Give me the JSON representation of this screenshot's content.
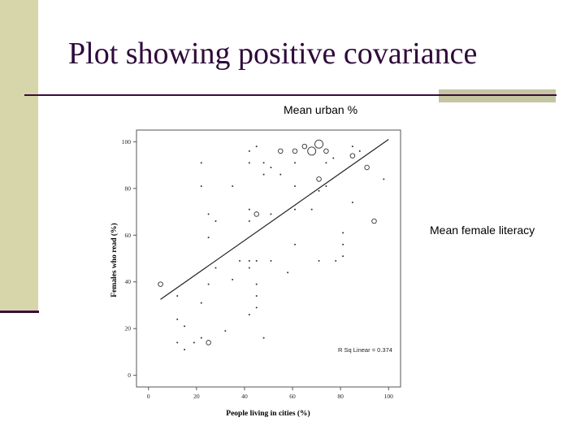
{
  "slide": {
    "title": "Plot showing positive covariance",
    "caption_top": "Mean urban %",
    "caption_right": "Mean female literacy"
  },
  "colors": {
    "accent": "#2f0a3a",
    "sidebar": "#d6d6aa",
    "rule_block": "#c5c5a3"
  },
  "chart_data": {
    "type": "scatter",
    "title": "",
    "xlabel": "People living in cities (%)",
    "ylabel": "Females who read (%)",
    "xlim": [
      -5,
      105
    ],
    "ylim": [
      -5,
      105
    ],
    "xticks": [
      0,
      20,
      40,
      60,
      80,
      100
    ],
    "yticks": [
      0,
      20,
      40,
      60,
      80,
      100
    ],
    "grid": false,
    "annotation": "R Sq Linear = 0.374",
    "fit_line": {
      "x": [
        5,
        100
      ],
      "y": [
        32.5,
        101
      ]
    },
    "points": [
      {
        "x": 5,
        "y": 39,
        "size": "medium"
      },
      {
        "x": 12,
        "y": 34,
        "size": "small"
      },
      {
        "x": 12,
        "y": 24,
        "size": "small"
      },
      {
        "x": 12,
        "y": 14,
        "size": "small"
      },
      {
        "x": 15,
        "y": 21,
        "size": "small"
      },
      {
        "x": 15,
        "y": 11,
        "size": "small"
      },
      {
        "x": 19,
        "y": 14,
        "size": "small"
      },
      {
        "x": 22,
        "y": 91,
        "size": "small"
      },
      {
        "x": 22,
        "y": 81,
        "size": "small"
      },
      {
        "x": 22,
        "y": 31,
        "size": "small"
      },
      {
        "x": 22,
        "y": 16,
        "size": "small"
      },
      {
        "x": 25,
        "y": 69,
        "size": "small"
      },
      {
        "x": 25,
        "y": 59,
        "size": "small"
      },
      {
        "x": 25,
        "y": 39,
        "size": "small"
      },
      {
        "x": 25,
        "y": 14,
        "size": "medium"
      },
      {
        "x": 28,
        "y": 66,
        "size": "small"
      },
      {
        "x": 28,
        "y": 46,
        "size": "small"
      },
      {
        "x": 32,
        "y": 19,
        "size": "small"
      },
      {
        "x": 35,
        "y": 81,
        "size": "small"
      },
      {
        "x": 35,
        "y": 41,
        "size": "small"
      },
      {
        "x": 38,
        "y": 49,
        "size": "small"
      },
      {
        "x": 42,
        "y": 96,
        "size": "small"
      },
      {
        "x": 42,
        "y": 91,
        "size": "small"
      },
      {
        "x": 42,
        "y": 71,
        "size": "small"
      },
      {
        "x": 42,
        "y": 66,
        "size": "small"
      },
      {
        "x": 42,
        "y": 49,
        "size": "small"
      },
      {
        "x": 42,
        "y": 46,
        "size": "small"
      },
      {
        "x": 42,
        "y": 26,
        "size": "small"
      },
      {
        "x": 45,
        "y": 98,
        "size": "small"
      },
      {
        "x": 45,
        "y": 69,
        "size": "medium"
      },
      {
        "x": 45,
        "y": 49,
        "size": "small"
      },
      {
        "x": 45,
        "y": 39,
        "size": "small"
      },
      {
        "x": 45,
        "y": 34,
        "size": "small"
      },
      {
        "x": 45,
        "y": 29,
        "size": "small"
      },
      {
        "x": 48,
        "y": 91,
        "size": "small"
      },
      {
        "x": 48,
        "y": 86,
        "size": "small"
      },
      {
        "x": 48,
        "y": 16,
        "size": "small"
      },
      {
        "x": 51,
        "y": 89,
        "size": "small"
      },
      {
        "x": 51,
        "y": 69,
        "size": "small"
      },
      {
        "x": 51,
        "y": 49,
        "size": "small"
      },
      {
        "x": 55,
        "y": 96,
        "size": "medium"
      },
      {
        "x": 55,
        "y": 86,
        "size": "small"
      },
      {
        "x": 58,
        "y": 44,
        "size": "small"
      },
      {
        "x": 61,
        "y": 96,
        "size": "medium"
      },
      {
        "x": 61,
        "y": 91,
        "size": "small"
      },
      {
        "x": 61,
        "y": 81,
        "size": "small"
      },
      {
        "x": 61,
        "y": 71,
        "size": "small"
      },
      {
        "x": 61,
        "y": 56,
        "size": "small"
      },
      {
        "x": 65,
        "y": 98,
        "size": "medium"
      },
      {
        "x": 68,
        "y": 96,
        "size": "large"
      },
      {
        "x": 68,
        "y": 71,
        "size": "small"
      },
      {
        "x": 71,
        "y": 99,
        "size": "large"
      },
      {
        "x": 71,
        "y": 84,
        "size": "medium"
      },
      {
        "x": 71,
        "y": 79,
        "size": "small"
      },
      {
        "x": 71,
        "y": 49,
        "size": "small"
      },
      {
        "x": 74,
        "y": 96,
        "size": "medium"
      },
      {
        "x": 74,
        "y": 91,
        "size": "small"
      },
      {
        "x": 74,
        "y": 81,
        "size": "small"
      },
      {
        "x": 77,
        "y": 93,
        "size": "small"
      },
      {
        "x": 78,
        "y": 49,
        "size": "small"
      },
      {
        "x": 81,
        "y": 61,
        "size": "small"
      },
      {
        "x": 81,
        "y": 56,
        "size": "small"
      },
      {
        "x": 81,
        "y": 51,
        "size": "small"
      },
      {
        "x": 85,
        "y": 98,
        "size": "small"
      },
      {
        "x": 85,
        "y": 94,
        "size": "medium"
      },
      {
        "x": 85,
        "y": 74,
        "size": "small"
      },
      {
        "x": 88,
        "y": 96,
        "size": "small"
      },
      {
        "x": 91,
        "y": 89,
        "size": "medium"
      },
      {
        "x": 94,
        "y": 66,
        "size": "medium"
      },
      {
        "x": 98,
        "y": 84,
        "size": "small"
      }
    ]
  }
}
